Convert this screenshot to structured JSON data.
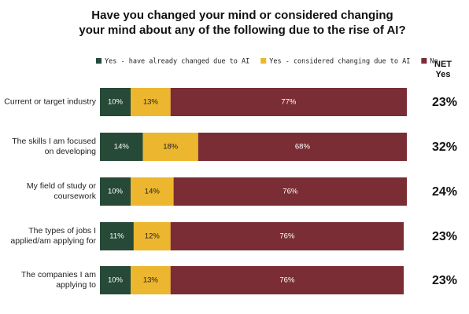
{
  "chart_data": {
    "type": "stacked-bar",
    "title": "Have you changed your mind or considered changing your mind about any of the following due to the rise of AI?",
    "categories": [
      "Current or target industry",
      "The skills I am focused on developing",
      "My field of study or coursework",
      "The types of jobs I applied/am applying for",
      "The companies I am applying to"
    ],
    "xlim": [
      0,
      100
    ],
    "series": [
      {
        "name": "Yes - have already changed due to AI",
        "color": "#274a38",
        "values": [
          10,
          14,
          10,
          11,
          10
        ],
        "value_labels": [
          "10%",
          "14%",
          "10%",
          "11%",
          "10%"
        ]
      },
      {
        "name": "Yes - considered changing due to AI",
        "color": "#ecb62e",
        "values": [
          13,
          18,
          14,
          12,
          13
        ],
        "value_labels": [
          "13%",
          "18%",
          "14%",
          "12%",
          "13%"
        ]
      },
      {
        "name": "No",
        "color": "#7b2d35",
        "values": [
          77,
          68,
          76,
          76,
          76
        ],
        "value_labels": [
          "77%",
          "68%",
          "76%",
          "76%",
          "76%"
        ]
      }
    ],
    "net": {
      "title": "NET Yes",
      "values": [
        23,
        32,
        24,
        23,
        23
      ],
      "value_labels": [
        "23%",
        "32%",
        "24%",
        "23%",
        "23%"
      ]
    }
  }
}
